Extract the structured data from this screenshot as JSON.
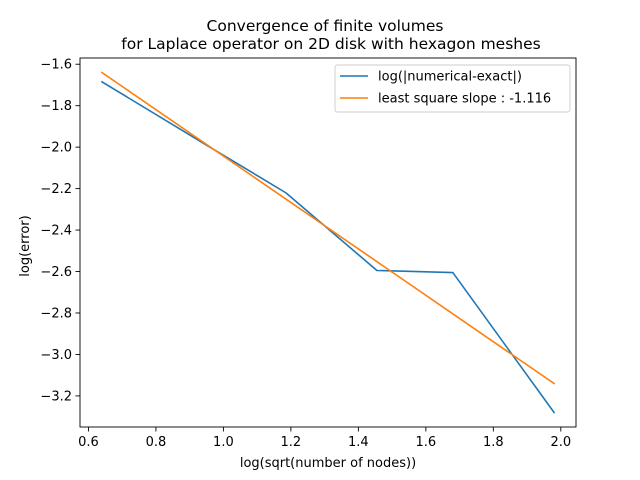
{
  "chart_data": {
    "type": "line",
    "title_lines": [
      "Convergence of finite volumes",
      "for Laplace operator on 2D disk with hexagon meshes"
    ],
    "xlabel": "log(sqrt(number of nodes))",
    "ylabel": "log(error)",
    "xlim": [
      0.575,
      2.045
    ],
    "ylim": [
      -3.35,
      -1.57
    ],
    "x_ticks": [
      0.6,
      0.8,
      1.0,
      1.2,
      1.4,
      1.6,
      1.8,
      2.0
    ],
    "x_tick_labels": [
      "0.6",
      "0.8",
      "1.0",
      "1.2",
      "1.4",
      "1.6",
      "1.8",
      "2.0"
    ],
    "y_ticks": [
      -1.6,
      -1.8,
      -2.0,
      -2.2,
      -2.4,
      -2.6,
      -2.8,
      -3.0,
      -3.2
    ],
    "y_tick_labels": [
      "−1.6",
      "−1.8",
      "−2.0",
      "−2.2",
      "−2.4",
      "−2.6",
      "−2.8",
      "−3.0",
      "−3.2"
    ],
    "grid": false,
    "legend_position": "upper-right",
    "series": [
      {
        "name": "log(|numerical-exact|)",
        "color": "#1f77b4",
        "x": [
          0.64,
          0.96,
          1.185,
          1.455,
          1.68,
          1.98
        ],
        "y": [
          -1.685,
          -2.0,
          -2.22,
          -2.595,
          -2.605,
          -3.28
        ]
      },
      {
        "name": "least square slope : -1.116",
        "color": "#ff7f0e",
        "x": [
          0.64,
          1.98
        ],
        "y": [
          -1.64,
          -3.14
        ]
      }
    ]
  }
}
